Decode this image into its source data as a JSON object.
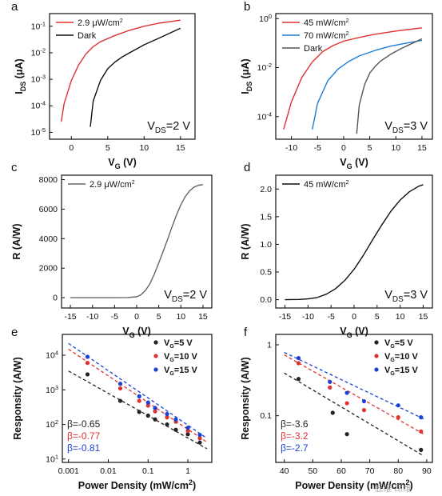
{
  "figure": {
    "watermark_text": "低维 昂维"
  },
  "chart_data": [
    {
      "id": "a",
      "panel_label": "a",
      "type": "line",
      "xlabel": "V_G (V)",
      "ylabel": "I_DS (μA)",
      "yscale": "log",
      "xlim": [
        -3,
        17
      ],
      "ylim": [
        5.5e-06,
        0.3
      ],
      "xticks": [
        0,
        5,
        10,
        15
      ],
      "yticks": [
        1e-05,
        0.0001,
        0.001,
        0.01,
        0.1
      ],
      "ytick_labels": [
        "10^-5",
        "10^-4",
        "10^-3",
        "10^-2",
        "10^-1"
      ],
      "legend_position": "top-left",
      "annotation": "V_DS=2 V",
      "series": [
        {
          "name": "2.9 μW/cm^2",
          "color": "#e03131",
          "x": [
            -1.4,
            -1,
            0,
            1,
            2,
            3,
            4,
            6,
            8,
            10,
            12,
            15
          ],
          "y": [
            2.5e-05,
            0.00012,
            0.0009,
            0.0035,
            0.009,
            0.017,
            0.026,
            0.045,
            0.07,
            0.1,
            0.13,
            0.17
          ]
        },
        {
          "name": "Dark",
          "color": "#111111",
          "x": [
            2.6,
            3,
            4,
            5,
            6,
            7,
            8,
            10,
            12,
            15
          ],
          "y": [
            1.6e-05,
            0.00015,
            0.0009,
            0.0025,
            0.0045,
            0.007,
            0.01,
            0.02,
            0.035,
            0.085
          ]
        }
      ]
    },
    {
      "id": "b",
      "panel_label": "b",
      "type": "line",
      "xlabel": "V_G (V)",
      "ylabel": "I_DS (μA)",
      "yscale": "log",
      "xlim": [
        -13,
        17
      ],
      "ylim": [
        1.2e-05,
        1.6
      ],
      "xticks": [
        -10,
        -5,
        0,
        5,
        10,
        15
      ],
      "yticks": [
        0.0001,
        0.01,
        1
      ],
      "ytick_labels": [
        "10^-4",
        "10^-2",
        "10^0"
      ],
      "legend_position": "top-left",
      "annotation": "V_DS=3 V",
      "series": [
        {
          "name": "45 mW/cm^2",
          "color": "#e03131",
          "x": [
            -11.5,
            -10,
            -8,
            -6,
            -4,
            -2,
            0,
            3,
            6,
            10,
            15
          ],
          "y": [
            3e-05,
            0.0004,
            0.004,
            0.017,
            0.045,
            0.08,
            0.12,
            0.17,
            0.23,
            0.31,
            0.42
          ]
        },
        {
          "name": "70 mW/cm^2",
          "color": "#1c7ed6",
          "x": [
            -6,
            -5,
            -3,
            -1,
            1,
            3,
            6,
            9,
            12,
            15
          ],
          "y": [
            3e-05,
            0.00035,
            0.003,
            0.009,
            0.018,
            0.03,
            0.05,
            0.075,
            0.1,
            0.13
          ]
        },
        {
          "name": "Dark",
          "color": "#555555",
          "x": [
            2.5,
            3,
            4,
            5,
            6,
            7,
            9,
            11,
            13,
            15
          ],
          "y": [
            2e-05,
            0.0003,
            0.002,
            0.006,
            0.011,
            0.018,
            0.035,
            0.06,
            0.095,
            0.15
          ]
        }
      ]
    },
    {
      "id": "c",
      "panel_label": "c",
      "type": "line",
      "xlabel": "V_G (V)",
      "ylabel": "R (A/W)",
      "yscale": "linear",
      "xlim": [
        -17,
        17
      ],
      "ylim": [
        -700,
        8300
      ],
      "xticks": [
        -15,
        -10,
        -5,
        0,
        5,
        10,
        15
      ],
      "yticks": [
        0,
        2000,
        4000,
        6000,
        8000
      ],
      "ytick_labels": [
        "0",
        "2000",
        "4000",
        "6000",
        "8000"
      ],
      "legend_position": "top-left",
      "annotation": "V_DS=2 V",
      "series": [
        {
          "name": "2.9 μW/cm^2",
          "color": "#666666",
          "x": [
            -15,
            -10,
            -5,
            -2,
            0,
            1,
            2,
            3,
            4,
            5,
            6,
            7,
            8,
            9,
            10,
            11,
            12,
            13,
            14,
            15
          ],
          "y": [
            0,
            0,
            0,
            10,
            60,
            200,
            500,
            950,
            1600,
            2350,
            3150,
            3950,
            4800,
            5600,
            6300,
            6850,
            7250,
            7500,
            7620,
            7660
          ]
        }
      ]
    },
    {
      "id": "d",
      "panel_label": "d",
      "type": "line",
      "xlabel": "V_G (V)",
      "ylabel": "R (A/W)",
      "yscale": "linear",
      "xlim": [
        -17,
        17
      ],
      "ylim": [
        -0.15,
        2.25
      ],
      "xticks": [
        -15,
        -10,
        -5,
        0,
        5,
        10,
        15
      ],
      "yticks": [
        0,
        0.5,
        1,
        1.5,
        2
      ],
      "ytick_labels": [
        "0.0",
        "0.5",
        "1.0",
        "1.5",
        "2.0"
      ],
      "legend_position": "top-left",
      "annotation": "V_DS=3 V",
      "series": [
        {
          "name": "45 mW/cm^2",
          "color": "#111111",
          "x": [
            -15,
            -12,
            -10,
            -8,
            -6,
            -4,
            -2,
            0,
            2,
            4,
            6,
            8,
            10,
            12,
            14,
            15
          ],
          "y": [
            0,
            0.005,
            0.015,
            0.04,
            0.1,
            0.2,
            0.35,
            0.55,
            0.8,
            1.08,
            1.35,
            1.6,
            1.8,
            1.95,
            2.05,
            2.08
          ]
        }
      ]
    },
    {
      "id": "e",
      "panel_label": "e",
      "type": "scatter",
      "xlabel": "Power Density (mW/cm^2)",
      "ylabel": "Responsity (A/W)",
      "xscale": "log",
      "yscale": "log",
      "xlim": [
        0.0007,
        4
      ],
      "ylim": [
        8,
        40000
      ],
      "xticks": [
        0.001,
        0.01,
        0.1,
        1
      ],
      "xtick_labels": [
        "0.001",
        "0.01",
        "0.1",
        "1"
      ],
      "yticks": [
        10,
        100,
        1000,
        10000
      ],
      "ytick_labels": [
        "10^1",
        "10^2",
        "10^3",
        "10^4"
      ],
      "legend_position": "top-right",
      "series": [
        {
          "name": "V_G=5 V",
          "color": "#222222",
          "x": [
            0.003,
            0.02,
            0.06,
            0.1,
            0.15,
            0.3,
            0.5,
            1,
            2
          ],
          "y": [
            2800,
            480,
            230,
            180,
            140,
            100,
            70,
            52,
            30
          ],
          "fit": {
            "x": [
              0.001,
              3
            ],
            "y": [
              3500,
              20
            ]
          }
        },
        {
          "name": "V_G=10 V",
          "color": "#e03131",
          "x": [
            0.003,
            0.02,
            0.06,
            0.1,
            0.15,
            0.3,
            0.5,
            1,
            2
          ],
          "y": [
            6000,
            1100,
            480,
            350,
            240,
            160,
            120,
            65,
            40
          ],
          "fit": {
            "x": [
              0.001,
              3
            ],
            "y": [
              15000,
              31
            ]
          }
        },
        {
          "name": "V_G=15 V",
          "color": "#1c3fd6",
          "x": [
            0.003,
            0.02,
            0.06,
            0.1,
            0.15,
            0.3,
            0.5,
            1,
            2
          ],
          "y": [
            9000,
            1500,
            650,
            430,
            300,
            200,
            140,
            80,
            50
          ],
          "fit": {
            "x": [
              0.001,
              3
            ],
            "y": [
              22000,
              40
            ]
          }
        }
      ],
      "annotations": [
        {
          "text": "β=-0.65",
          "color": "#222222"
        },
        {
          "text": "β=-0.77",
          "color": "#e03131"
        },
        {
          "text": "β=-0.81",
          "color": "#1c3fd6"
        }
      ]
    },
    {
      "id": "f",
      "panel_label": "f",
      "type": "scatter",
      "xlabel": "Power Density (mW/cm^2)",
      "ylabel": "Responsity (A/W)",
      "xscale": "linear",
      "yscale": "log",
      "xlim": [
        37,
        92
      ],
      "ylim": [
        0.022,
        1.4
      ],
      "xticks": [
        40,
        50,
        60,
        70,
        80,
        90
      ],
      "xtick_labels": [
        "40",
        "50",
        "60",
        "70",
        "80",
        "90"
      ],
      "yticks": [
        0.1,
        1
      ],
      "ytick_labels": [
        "0.1",
        "1"
      ],
      "legend_position": "top-right",
      "series": [
        {
          "name": "V_G=5 V",
          "color": "#222222",
          "x": [
            45,
            57,
            62,
            88
          ],
          "y": [
            0.33,
            0.11,
            0.055,
            0.033
          ],
          "fit": {
            "x": [
              40,
              89
            ],
            "y": [
              0.4,
              0.027
            ]
          }
        },
        {
          "name": "V_G=10 V",
          "color": "#e03131",
          "x": [
            45,
            56,
            62,
            68,
            80,
            88
          ],
          "y": [
            0.55,
            0.25,
            0.15,
            0.12,
            0.095,
            0.06
          ],
          "fit": {
            "x": [
              40,
              89
            ],
            "y": [
              0.72,
              0.055
            ]
          }
        },
        {
          "name": "V_G=15 V",
          "color": "#1c3fd6",
          "x": [
            45,
            56,
            62,
            68,
            80,
            88
          ],
          "y": [
            0.65,
            0.3,
            0.21,
            0.16,
            0.14,
            0.095
          ],
          "fit": {
            "x": [
              40,
              89
            ],
            "y": [
              0.78,
              0.09
            ]
          }
        }
      ],
      "annotations": [
        {
          "text": "β=-3.6",
          "color": "#222222"
        },
        {
          "text": "β=-3.2",
          "color": "#e03131"
        },
        {
          "text": "β=-2.7",
          "color": "#1c3fd6"
        }
      ]
    }
  ]
}
